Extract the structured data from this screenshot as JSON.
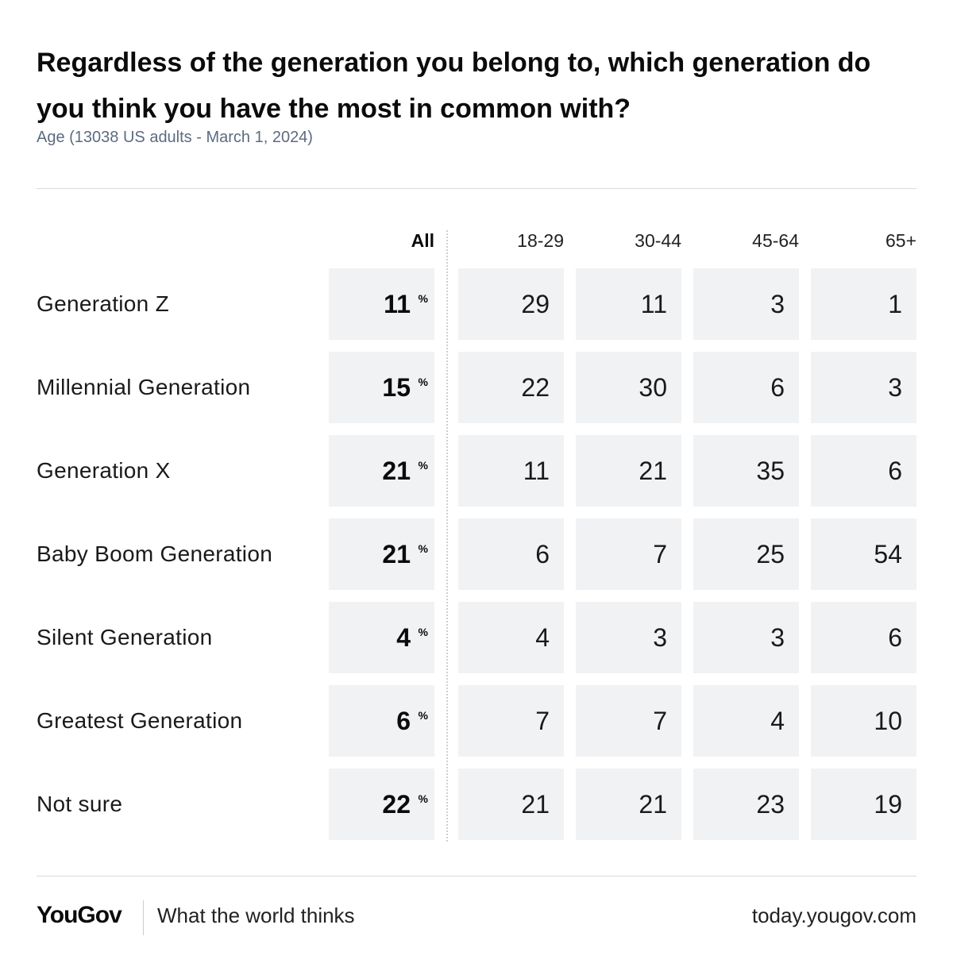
{
  "header": {
    "title": "Regardless of the generation you belong to, which generation do you think you have the most in common with?",
    "subtitle": "Age (13038 US adults - March 1, 2024)"
  },
  "chart_data": {
    "type": "table",
    "title": "Regardless of the generation you belong to, which generation do you think you have the most in common with?",
    "subtitle": "Age (13038 US adults - March 1, 2024)",
    "columns": [
      "All",
      "18-29",
      "30-44",
      "45-64",
      "65+"
    ],
    "unit_symbol": "%",
    "rows": [
      {
        "label": "Generation Z",
        "values": [
          11,
          29,
          11,
          3,
          1
        ]
      },
      {
        "label": "Millennial Generation",
        "values": [
          15,
          22,
          30,
          6,
          3
        ]
      },
      {
        "label": "Generation X",
        "values": [
          21,
          11,
          21,
          35,
          6
        ]
      },
      {
        "label": "Baby Boom Generation",
        "values": [
          21,
          6,
          7,
          25,
          54
        ]
      },
      {
        "label": "Silent Generation",
        "values": [
          4,
          4,
          3,
          3,
          6
        ]
      },
      {
        "label": "Greatest Generation",
        "values": [
          6,
          7,
          7,
          4,
          10
        ]
      },
      {
        "label": "Not sure",
        "values": [
          22,
          21,
          21,
          23,
          19
        ]
      }
    ]
  },
  "footer": {
    "brand": "YouGov",
    "tagline": "What the world thinks",
    "url": "today.yougov.com"
  },
  "colors": {
    "cell_background": "#f1f2f4",
    "subtitle": "#5c6b82",
    "text": "#111111"
  }
}
